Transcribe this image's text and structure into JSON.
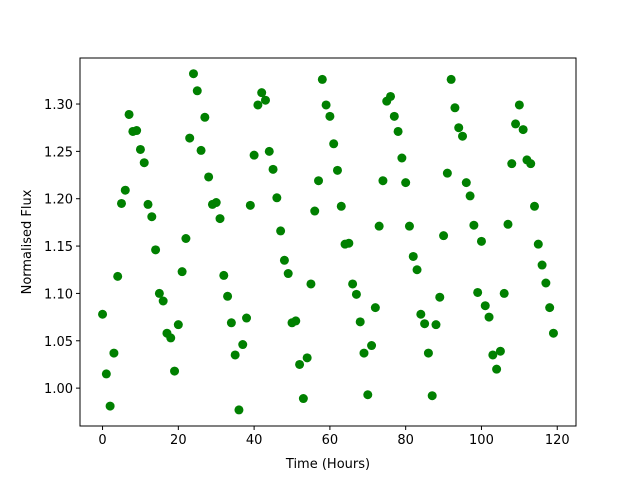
{
  "chart_data": {
    "type": "scatter",
    "xlabel": "Time (Hours)",
    "ylabel": "Normalised Flux",
    "color": "#008000",
    "x": [
      0,
      1,
      2,
      3,
      4,
      5,
      6,
      7,
      8,
      9,
      10,
      11,
      12,
      13,
      14,
      15,
      16,
      17,
      18,
      19,
      20,
      21,
      22,
      23,
      24,
      25,
      26,
      27,
      28,
      29,
      30,
      31,
      32,
      33,
      34,
      35,
      36,
      37,
      38,
      39,
      40,
      41,
      42,
      43,
      44,
      45,
      46,
      47,
      48,
      49,
      50,
      51,
      52,
      53,
      54,
      55,
      56,
      57,
      58,
      59,
      60,
      61,
      62,
      63,
      64,
      65,
      66,
      67,
      68,
      69,
      70,
      71,
      72,
      73,
      74,
      75,
      76,
      77,
      78,
      79,
      80,
      81,
      82,
      83,
      84,
      85,
      86,
      87,
      88,
      89,
      90,
      91,
      92,
      93,
      94,
      95,
      96,
      97,
      98,
      99,
      100,
      101,
      102,
      103,
      104,
      105,
      106,
      107,
      108,
      109,
      110,
      111,
      112,
      113,
      114,
      115,
      116,
      117,
      118,
      119
    ],
    "values": [
      1.078,
      1.015,
      0.981,
      1.037,
      1.118,
      1.195,
      1.209,
      1.289,
      1.271,
      1.272,
      1.252,
      1.238,
      1.194,
      1.181,
      1.146,
      1.1,
      1.092,
      1.058,
      1.053,
      1.018,
      1.067,
      1.123,
      1.158,
      1.264,
      1.332,
      1.314,
      1.251,
      1.286,
      1.223,
      1.194,
      1.196,
      1.179,
      1.119,
      1.097,
      1.069,
      1.035,
      0.977,
      1.046,
      1.074,
      1.193,
      1.246,
      1.299,
      1.312,
      1.304,
      1.25,
      1.231,
      1.201,
      1.166,
      1.135,
      1.121,
      1.069,
      1.071,
      1.025,
      0.989,
      1.032,
      1.11,
      1.187,
      1.219,
      1.326,
      1.299,
      1.287,
      1.258,
      1.23,
      1.192,
      1.152,
      1.153,
      1.11,
      1.099,
      1.07,
      1.037,
      0.993,
      1.045,
      1.085,
      1.171,
      1.219,
      1.303,
      1.308,
      1.287,
      1.271,
      1.243,
      1.217,
      1.171,
      1.139,
      1.125,
      1.078,
      1.068,
      1.037,
      0.992,
      1.067,
      1.096,
      1.161,
      1.227,
      1.326,
      1.296,
      1.275,
      1.266,
      1.217,
      1.203,
      1.172,
      1.101,
      1.155,
      1.087,
      1.075,
      1.035,
      1.02,
      1.039,
      1.1,
      1.173,
      1.237,
      1.279,
      1.299,
      1.273,
      1.241,
      1.237,
      1.192,
      1.152,
      1.13,
      1.111,
      1.085,
      1.058
    ],
    "xlim": [
      -5.95,
      124.95
    ],
    "ylim": [
      0.96,
      1.3486
    ],
    "xticks": [
      0,
      20,
      40,
      60,
      80,
      100,
      120
    ],
    "yticks": [
      {
        "value": 1.0,
        "label": "1.00"
      },
      {
        "value": 1.05,
        "label": "1.05"
      },
      {
        "value": 1.1,
        "label": "1.10"
      },
      {
        "value": 1.15,
        "label": "1.15"
      },
      {
        "value": 1.2,
        "label": "1.20"
      },
      {
        "value": 1.25,
        "label": "1.25"
      },
      {
        "value": 1.3,
        "label": "1.30"
      }
    ]
  }
}
